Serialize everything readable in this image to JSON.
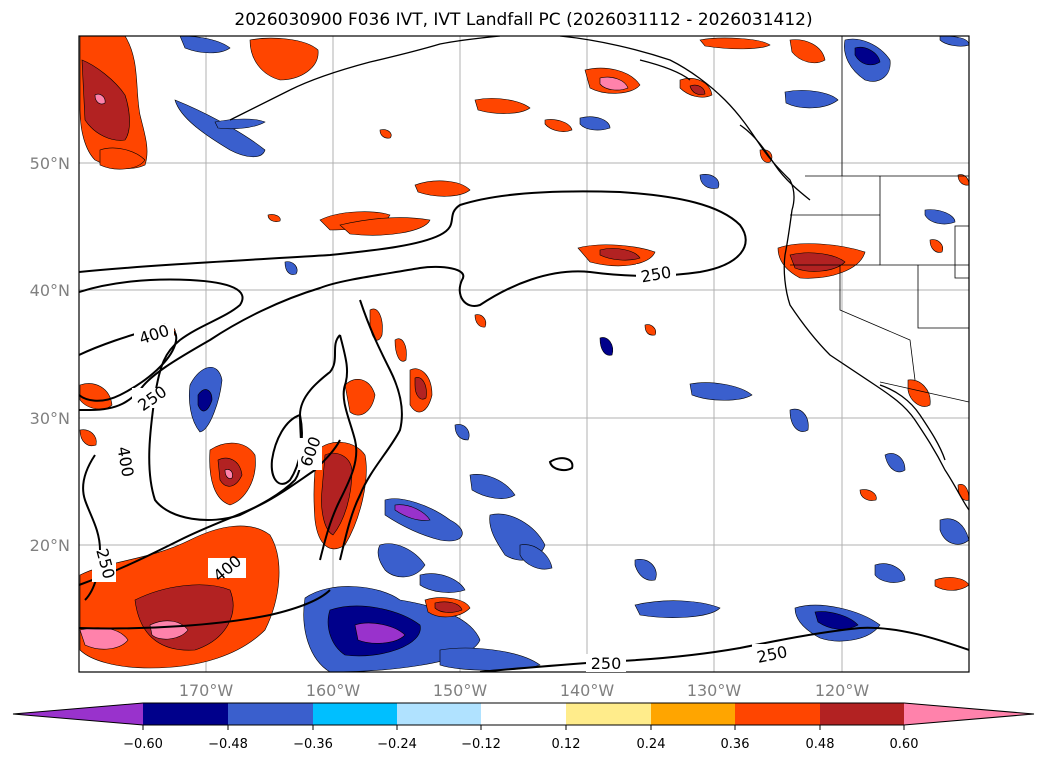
{
  "title": "2026030900 F036 IVT, IVT Landfall PC (2026031112 - 2026031412)",
  "map": {
    "lat_labels": [
      "50°N",
      "40°N",
      "30°N",
      "20°N"
    ],
    "lon_labels": [
      "170°W",
      "160°W",
      "150°W",
      "140°W",
      "130°W",
      "120°W"
    ],
    "contour_labels": [
      "400",
      "250",
      "400",
      "250",
      "600",
      "400",
      "250",
      "250",
      "250"
    ]
  },
  "colorbar": {
    "ticks": [
      "−0.60",
      "−0.48",
      "−0.36",
      "−0.24",
      "−0.12",
      "0.12",
      "0.24",
      "0.36",
      "0.48",
      "0.60"
    ],
    "colors": [
      "#9932cc",
      "#00008b",
      "#3a5fcd",
      "#00bfff",
      "#b0e2ff",
      "#ffffff",
      "#ffec8b",
      "#ffa500",
      "#ff4500",
      "#b22222",
      "#ff82ab"
    ]
  }
}
